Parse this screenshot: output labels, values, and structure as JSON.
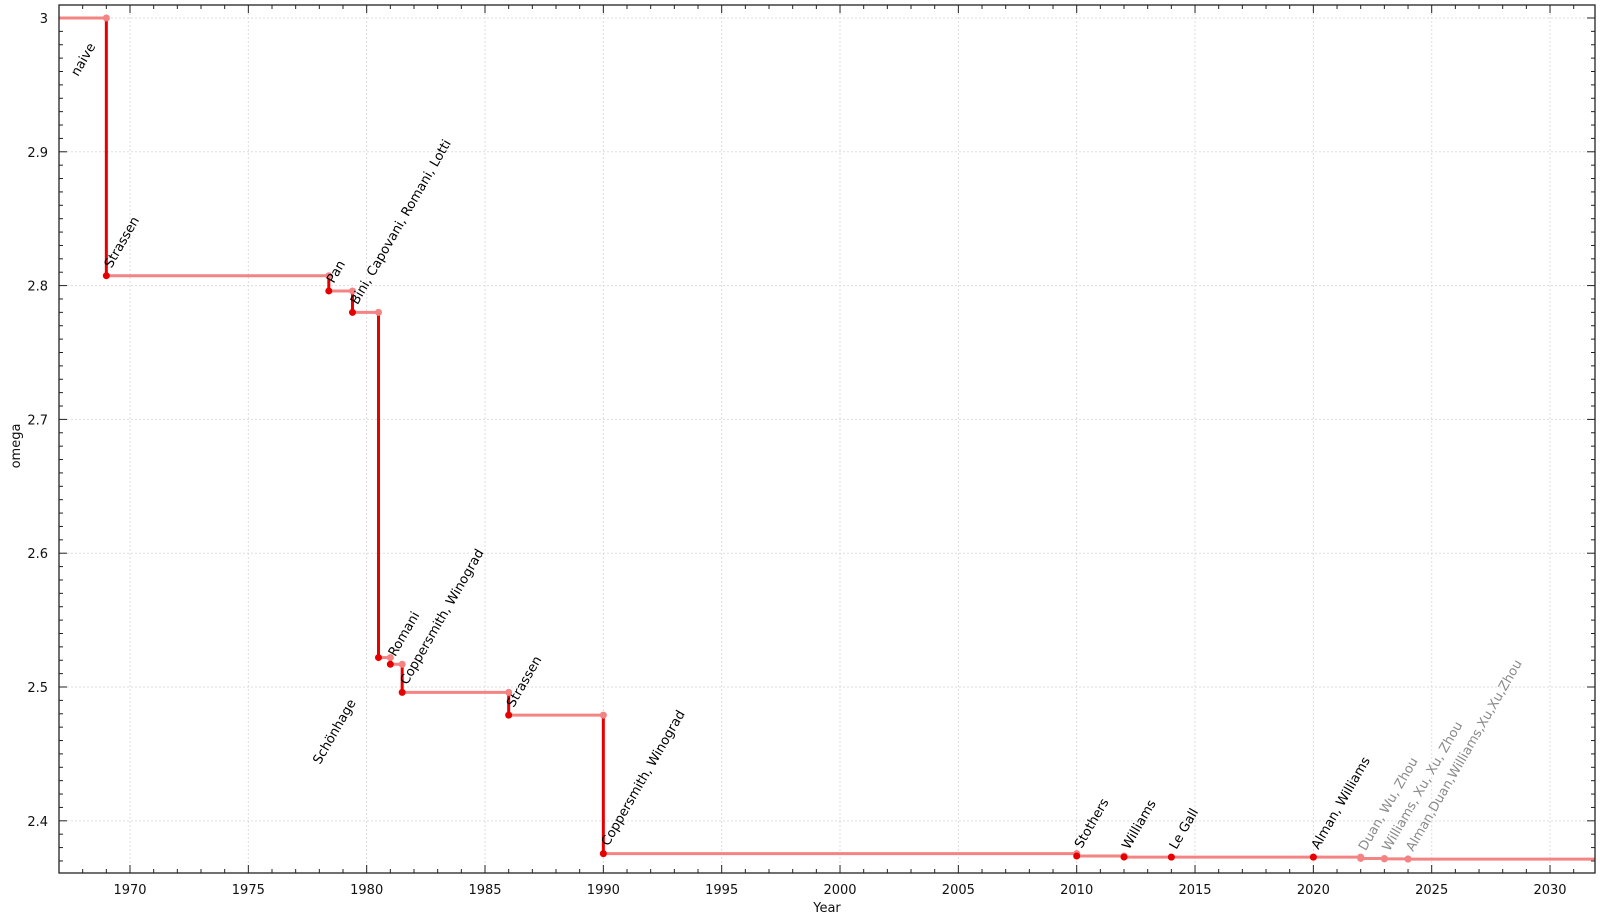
{
  "chart_data": {
    "type": "line",
    "step": true,
    "xlabel": "Year",
    "ylabel": "omega",
    "xlim": [
      1967.0,
      2031.9
    ],
    "ylim": [
      2.361,
      3.0097
    ],
    "grid": true,
    "xticks": [
      1970,
      1975,
      1980,
      1985,
      1990,
      1995,
      2000,
      2005,
      2010,
      2015,
      2020,
      2025,
      2030
    ],
    "yticks": [
      2.4,
      2.5,
      2.6,
      2.7,
      2.8,
      2.9,
      3
    ],
    "ytick_labels": [
      "2.4",
      "2.5",
      "2.6",
      "2.7",
      "2.8",
      "2.9",
      "3"
    ],
    "colors": {
      "step_line": "#f48383",
      "drop_line": "#e60000",
      "label": "#000000",
      "label_muted": "#8a8a8a",
      "grid": "#dddddd"
    },
    "points": [
      {
        "label": "naive",
        "x": 1967.0,
        "y": 3.0,
        "muted": false
      },
      {
        "label": "Strassen",
        "x": 1969,
        "y": 2.8074,
        "muted": false
      },
      {
        "label": "Pan",
        "x": 1978.4,
        "y": 2.796,
        "muted": false
      },
      {
        "label": "Bini, Capovani, Romani, Lotti",
        "x": 1979.4,
        "y": 2.78,
        "muted": false
      },
      {
        "label": "Schönhage",
        "x": 1980.5,
        "y": 2.522,
        "muted": false
      },
      {
        "label": "Romani",
        "x": 1981.0,
        "y": 2.517,
        "muted": false
      },
      {
        "label": "Coppersmith, Winograd",
        "x": 1981.5,
        "y": 2.496,
        "muted": false
      },
      {
        "label": "Strassen",
        "x": 1986.0,
        "y": 2.479,
        "muted": false
      },
      {
        "label": "Coppersmith, Winograd",
        "x": 1990.0,
        "y": 2.3755,
        "muted": false
      },
      {
        "label": "Stothers",
        "x": 2010.0,
        "y": 2.3737,
        "muted": false
      },
      {
        "label": "Williams",
        "x": 2012.0,
        "y": 2.3729,
        "muted": false
      },
      {
        "label": "Le Gall",
        "x": 2014.0,
        "y": 2.3728639,
        "muted": false
      },
      {
        "label": "Alman, Williams",
        "x": 2020.0,
        "y": 2.3728596,
        "muted": false
      },
      {
        "label": "Duan, Wu, Zhou",
        "x": 2022.0,
        "y": 2.371866,
        "muted": true
      },
      {
        "label": "Williams, Xu, Xu, Zhou",
        "x": 2023.0,
        "y": 2.371552,
        "muted": true
      },
      {
        "label": "Alman,Duan,Williams,Xu,Xu,Zhou",
        "x": 2024.0,
        "y": 2.371339,
        "muted": true
      }
    ]
  }
}
